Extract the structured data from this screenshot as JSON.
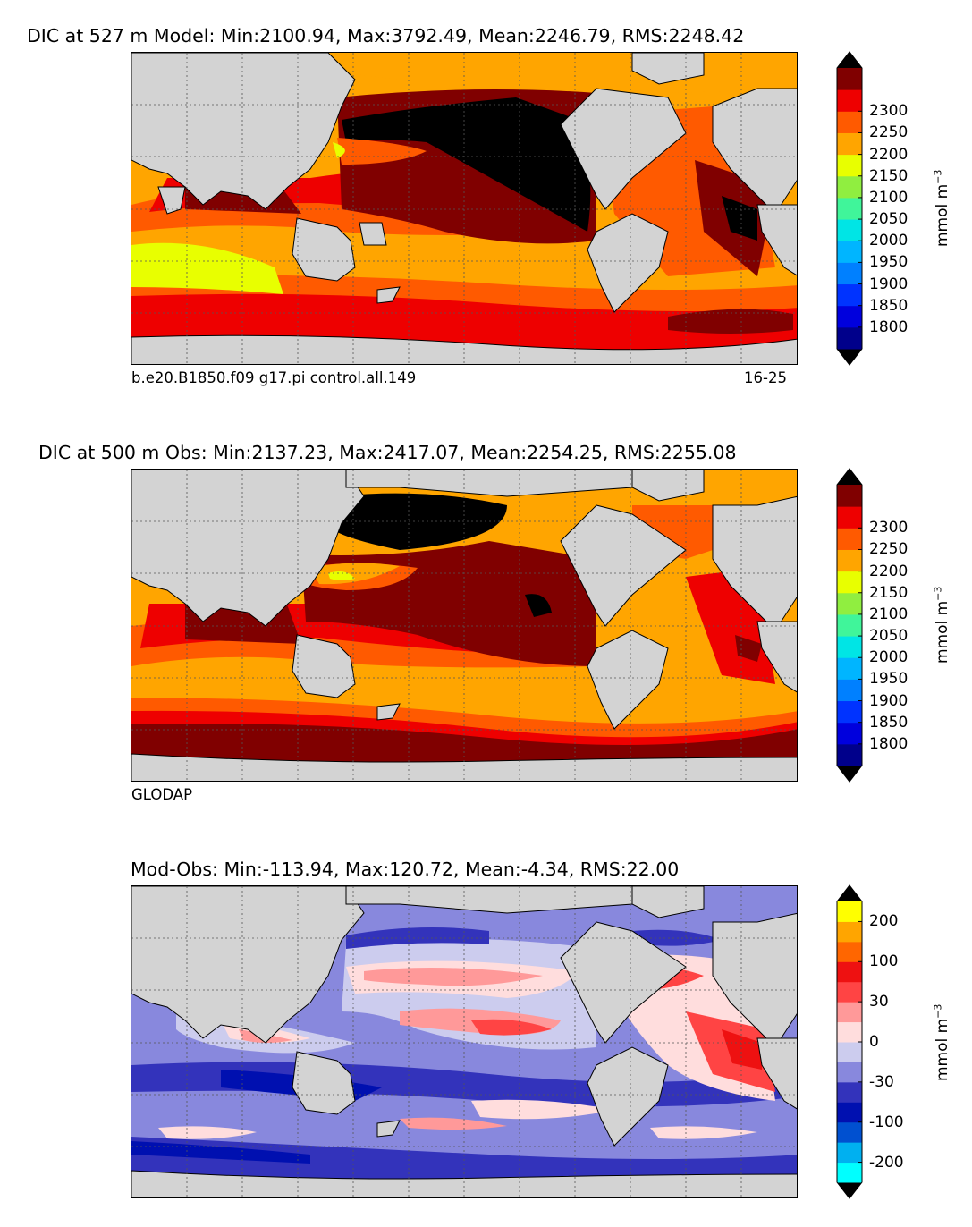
{
  "chart_data": [
    {
      "type": "heatmap",
      "title": "DIC at 527 m Model: Min:2100.94, Max:3792.49, Mean:2246.79, RMS:2248.42",
      "caption_left": "b.e20.B1850.f09 g17.pi control.all.149",
      "caption_right": "16-25",
      "colorbar": {
        "label": "mmol m",
        "label_superscript": "−3",
        "ticks": [
          "1800",
          "1850",
          "1900",
          "1950",
          "2000",
          "2050",
          "2100",
          "2150",
          "2200",
          "2250",
          "2300"
        ],
        "colors": [
          "#00008b",
          "#0000dd",
          "#0033ff",
          "#0080ff",
          "#00b5ff",
          "#00e5e5",
          "#40f59a",
          "#90ee40",
          "#e8ff00",
          "#ffa500",
          "#ff5a00",
          "#ee0000",
          "#800000"
        ],
        "extend_low_color": "#000000",
        "extend_high_color": "#000000"
      },
      "field_summary": {
        "min": 2100.94,
        "max": 3792.49,
        "mean": 2246.79,
        "rms": 2248.42,
        "depth_m": 527
      }
    },
    {
      "type": "heatmap",
      "title": "DIC at 500 m Obs: Min:2137.23, Max:2417.07, Mean:2254.25, RMS:2255.08",
      "caption_left": "GLODAP",
      "caption_right": "",
      "colorbar": {
        "label": "mmol m",
        "label_superscript": "−3",
        "ticks": [
          "1800",
          "1850",
          "1900",
          "1950",
          "2000",
          "2050",
          "2100",
          "2150",
          "2200",
          "2250",
          "2300"
        ],
        "colors": [
          "#00008b",
          "#0000dd",
          "#0033ff",
          "#0080ff",
          "#00b5ff",
          "#00e5e5",
          "#40f59a",
          "#90ee40",
          "#e8ff00",
          "#ffa500",
          "#ff5a00",
          "#ee0000",
          "#800000"
        ],
        "extend_low_color": "#000000",
        "extend_high_color": "#000000"
      },
      "field_summary": {
        "min": 2137.23,
        "max": 2417.07,
        "mean": 2254.25,
        "rms": 2255.08,
        "depth_m": 500
      }
    },
    {
      "type": "heatmap",
      "title": "Mod-Obs: Min:-113.94, Max:120.72, Mean:-4.34, RMS:22.00",
      "caption_left": "",
      "caption_right": "",
      "colorbar": {
        "label": "mmol m",
        "label_superscript": "−3",
        "ticks": [
          "-200",
          "-100",
          "-30",
          "0",
          "30",
          "100",
          "200"
        ],
        "tick_positions": [
          1,
          3,
          5,
          7,
          9,
          11,
          13
        ],
        "colors": [
          "#00ffff",
          "#00b0f0",
          "#0050d0",
          "#0010b0",
          "#3333bb",
          "#8888dd",
          "#ccccee",
          "#ffdddd",
          "#ff9999",
          "#ff4444",
          "#ee1111",
          "#ff6600",
          "#ffa500",
          "#ffff00"
        ],
        "extend_low_color": "#000000",
        "extend_high_color": "#000000"
      },
      "field_summary": {
        "min": -113.94,
        "max": 120.72,
        "mean": -4.34,
        "rms": 22.0
      }
    }
  ]
}
